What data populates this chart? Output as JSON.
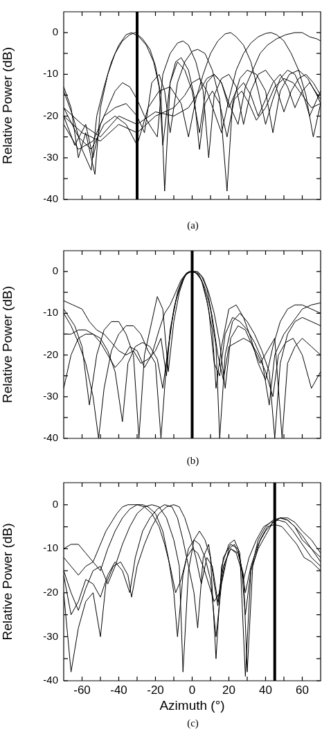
{
  "chart_data": [
    {
      "type": "line",
      "ylabel": "Relative Power (dB)",
      "annotations": [
        "(a)"
      ],
      "xlim": [
        -70,
        70
      ],
      "ylim": [
        -40,
        5
      ],
      "xticks": [
        {
          "value": -60,
          "label": null
        },
        {
          "value": -50,
          "label": null
        },
        {
          "value": -40,
          "label": null
        },
        {
          "value": -30,
          "label": null
        },
        {
          "value": -20,
          "label": null
        },
        {
          "value": -10,
          "label": null
        },
        {
          "value": 0,
          "label": null
        },
        {
          "value": 10,
          "label": null
        },
        {
          "value": 20,
          "label": null
        },
        {
          "value": 30,
          "label": null
        },
        {
          "value": 40,
          "label": null
        },
        {
          "value": 50,
          "label": null
        },
        {
          "value": 60,
          "label": null
        }
      ],
      "yticks": [
        -40,
        {
          "value": -35,
          "label": null
        },
        -30,
        {
          "value": -25,
          "label": null
        },
        -20,
        {
          "value": -15,
          "label": null
        },
        -10,
        {
          "value": -5,
          "label": null
        },
        0
      ],
      "tick_labels": "y",
      "legend": false,
      "marker": "none",
      "grid": false,
      "ref_lines": [
        {
          "axis": "x",
          "value": -30,
          "color": "#000000"
        }
      ],
      "series": [
        {
          "color": "#000000",
          "x": [
            -70,
            -65,
            -60,
            -55,
            -52,
            -48,
            -44,
            -40,
            -36,
            -33,
            -29,
            -25,
            -21,
            -18,
            -16,
            -12,
            -8,
            -4,
            0,
            4,
            8,
            12,
            16,
            20,
            24,
            28,
            32,
            36,
            40,
            44,
            48,
            52,
            56,
            60,
            64,
            70
          ],
          "values": [
            -14,
            -20,
            -28,
            -33,
            -20,
            -13,
            -7,
            -3,
            -0.5,
            0,
            -1,
            -3,
            -7,
            -13,
            -27,
            -12,
            -7,
            -9,
            -14,
            -24,
            -12,
            -10,
            -12,
            -18,
            -14,
            -12,
            -15,
            -20,
            -16,
            -12,
            -10,
            -13,
            -18,
            -14,
            -12,
            -16
          ]
        },
        {
          "color": "#000000",
          "x": [
            -70,
            -66,
            -62,
            -58,
            -53,
            -50,
            -46,
            -42,
            -38,
            -34,
            -31,
            -27,
            -23,
            -20,
            -17,
            -15,
            -12,
            -9,
            -6,
            -2,
            1,
            4,
            7,
            11,
            15,
            19,
            23,
            27,
            31,
            35,
            40,
            45,
            50,
            55,
            60,
            65,
            70
          ],
          "values": [
            -13,
            -18,
            -30,
            -24,
            -34,
            -18,
            -10,
            -5,
            -2,
            -0.5,
            0,
            -1.5,
            -4,
            -8,
            -15,
            -38,
            -12,
            -7,
            -6,
            -9,
            -15,
            -28,
            -17,
            -14,
            -17,
            -25,
            -16,
            -14,
            -17,
            -21,
            -18,
            -13,
            -11,
            -12,
            -15,
            -18,
            -17
          ]
        },
        {
          "color": "#000000",
          "x": [
            -70,
            -64,
            -58,
            -54,
            -50,
            -46,
            -42,
            -38,
            -34,
            -30,
            -26,
            -22,
            -19,
            -16,
            -12,
            -8,
            -5,
            -2,
            2,
            6,
            9,
            12,
            16,
            20,
            24,
            28,
            32,
            36,
            40,
            45,
            50,
            54,
            58,
            62,
            66,
            70
          ],
          "values": [
            -20,
            -27,
            -22,
            -30,
            -22,
            -18,
            -14,
            -12,
            -13,
            -16,
            -20,
            -23,
            -25,
            -10,
            -5,
            -2.5,
            -2,
            -3,
            -7,
            -14,
            -30,
            -15,
            -11,
            -10,
            -13,
            -22,
            -14,
            -10,
            -9,
            -12,
            -19,
            -14,
            -11,
            -10,
            -12,
            -15
          ]
        },
        {
          "color": "#000000",
          "x": [
            -70,
            -62,
            -54,
            -48,
            -42,
            -36,
            -30,
            -26,
            -22,
            -18,
            -15,
            -12,
            -8,
            -4,
            0,
            3,
            7,
            11,
            15,
            19,
            22,
            26,
            30,
            35,
            40,
            44,
            48,
            53,
            58,
            63,
            68,
            70
          ],
          "values": [
            -22,
            -28,
            -26,
            -20,
            -18,
            -17,
            -20,
            -24,
            -12,
            -10,
            -14,
            -24,
            -12,
            -7,
            -4.5,
            -4,
            -5,
            -9,
            -16,
            -38,
            -17,
            -11,
            -9,
            -10,
            -14,
            -24,
            -14,
            -10,
            -9,
            -11,
            -15,
            -17
          ]
        },
        {
          "color": "#000000",
          "x": [
            -70,
            -62,
            -55,
            -48,
            -42,
            -36,
            -30,
            -24,
            -18,
            -12,
            -6,
            -2,
            2,
            6,
            10,
            14,
            18,
            21,
            24,
            28,
            32,
            36,
            40,
            44,
            48,
            52,
            56,
            60,
            64,
            68,
            70
          ],
          "values": [
            -18,
            -25,
            -28,
            -22,
            -20,
            -22,
            -27,
            -18,
            -14,
            -13,
            -17,
            -25,
            -16,
            -10,
            -5,
            -2,
            -0.3,
            0,
            -1,
            -3,
            -7,
            -14,
            -22,
            -16,
            -11,
            -9,
            -10,
            -14,
            -20,
            -16,
            -14
          ]
        },
        {
          "color": "#000000",
          "x": [
            -70,
            -60,
            -50,
            -40,
            -30,
            -20,
            -10,
            -4,
            0,
            4,
            8,
            12,
            16,
            20,
            24,
            28,
            32,
            36,
            40,
            43,
            46,
            50,
            54,
            58,
            62,
            66,
            70
          ],
          "values": [
            -20,
            -24,
            -26,
            -22,
            -24,
            -20,
            -18,
            -15,
            -12,
            -11,
            -14,
            -19,
            -24,
            -16,
            -9,
            -5,
            -2.5,
            -1,
            -0.2,
            0,
            -0.5,
            -2,
            -5,
            -9,
            -15,
            -25,
            -17
          ]
        },
        {
          "color": "#000000",
          "x": [
            -70,
            -60,
            -50,
            -40,
            -30,
            -20,
            -10,
            -2,
            4,
            8,
            12,
            16,
            20,
            25,
            29,
            33,
            37,
            41,
            46,
            51,
            56,
            60,
            64,
            68,
            70
          ],
          "values": [
            -18,
            -22,
            -25,
            -20,
            -22,
            -19,
            -20,
            -18,
            -14,
            -11,
            -10,
            -12,
            -17,
            -22,
            -13,
            -9,
            -5,
            -3,
            -1.5,
            -0.5,
            0,
            0,
            -1,
            -1.5,
            -2
          ]
        }
      ]
    },
    {
      "type": "line",
      "ylabel": "Relative Power (dB)",
      "annotations": [
        "(b)"
      ],
      "xlim": [
        -70,
        70
      ],
      "ylim": [
        -40,
        5
      ],
      "xticks": [
        {
          "value": -60,
          "label": null
        },
        {
          "value": -50,
          "label": null
        },
        {
          "value": -40,
          "label": null
        },
        {
          "value": -30,
          "label": null
        },
        {
          "value": -20,
          "label": null
        },
        {
          "value": -10,
          "label": null
        },
        {
          "value": 0,
          "label": null
        },
        {
          "value": 10,
          "label": null
        },
        {
          "value": 20,
          "label": null
        },
        {
          "value": 30,
          "label": null
        },
        {
          "value": 40,
          "label": null
        },
        {
          "value": 50,
          "label": null
        },
        {
          "value": 60,
          "label": null
        }
      ],
      "yticks": [
        -40,
        {
          "value": -35,
          "label": null
        },
        -30,
        {
          "value": -25,
          "label": null
        },
        -20,
        {
          "value": -15,
          "label": null
        },
        -10,
        {
          "value": -5,
          "label": null
        },
        0
      ],
      "tick_labels": "y",
      "legend": false,
      "marker": "none",
      "grid": false,
      "ref_lines": [
        {
          "axis": "x",
          "value": 0,
          "color": "#000000"
        }
      ],
      "series": [
        {
          "color": "#000000",
          "x": [
            -70,
            -65,
            -60,
            -56,
            -52,
            -48,
            -44,
            -40,
            -36,
            -32,
            -28,
            -24,
            -20,
            -17,
            -14,
            -12,
            -9,
            -6,
            -3,
            0,
            3,
            6,
            9,
            12,
            15,
            18,
            22,
            26,
            30,
            34,
            38,
            42,
            45,
            50,
            55,
            60,
            65,
            70
          ],
          "values": [
            -7,
            -8,
            -9,
            -12,
            -14,
            -15,
            -17,
            -19,
            -20,
            -19,
            -22,
            -21,
            -19,
            -16,
            -25,
            -14,
            -7,
            -3,
            -0.5,
            0,
            -0.5,
            -3,
            -9,
            -22,
            -25,
            -15,
            -11,
            -12,
            -14,
            -17,
            -21,
            -32,
            -20,
            -15,
            -12,
            -9,
            -8,
            -7.5
          ]
        },
        {
          "color": "#000000",
          "x": [
            -70,
            -64,
            -60,
            -56,
            -52,
            -48,
            -44,
            -40,
            -36,
            -32,
            -29,
            -26,
            -22,
            -19,
            -16,
            -13,
            -10,
            -7,
            -4,
            -1,
            2,
            5,
            8,
            11,
            13,
            16,
            20,
            24,
            28,
            32,
            36,
            40,
            44,
            48,
            52,
            56,
            60,
            65,
            70
          ],
          "values": [
            -9,
            -13,
            -18,
            -32,
            -20,
            -14,
            -12,
            -12,
            -15,
            -20,
            -40,
            -20,
            -12,
            -6,
            -9,
            -24,
            -12,
            -5,
            -1,
            0,
            -0.3,
            -2,
            -7,
            -14,
            -28,
            -18,
            -9,
            -8,
            -11,
            -16,
            -22,
            -26,
            -18,
            -12,
            -9,
            -8,
            -8,
            -9,
            -10
          ]
        },
        {
          "color": "#000000",
          "x": [
            -70,
            -66,
            -62,
            -58,
            -54,
            -51,
            -48,
            -44,
            -40,
            -36,
            -32,
            -28,
            -24,
            -20,
            -17,
            -14,
            -11,
            -8,
            -5,
            -2,
            1,
            4,
            7,
            10,
            13,
            15,
            18,
            22,
            26,
            30,
            34,
            38,
            42,
            45,
            48,
            52,
            56,
            60,
            65,
            70
          ],
          "values": [
            -10,
            -13,
            -17,
            -22,
            -30,
            -40,
            -28,
            -19,
            -15,
            -13,
            -13,
            -15,
            -19,
            -22,
            -40,
            -22,
            -12,
            -5,
            -1.5,
            0,
            0,
            -1,
            -4,
            -9,
            -18,
            -40,
            -20,
            -12,
            -10,
            -12,
            -15,
            -19,
            -24,
            -40,
            -22,
            -15,
            -12,
            -11,
            -12,
            -13
          ]
        },
        {
          "color": "#000000",
          "x": [
            -70,
            -66,
            -62,
            -58,
            -54,
            -50,
            -46,
            -42,
            -38,
            -34,
            -30,
            -26,
            -22,
            -18,
            -15,
            -12,
            -9,
            -6,
            -3,
            0,
            3,
            6,
            9,
            12,
            15,
            18,
            21,
            25,
            29,
            33,
            37,
            41,
            45,
            49,
            52,
            56,
            60,
            65,
            70
          ],
          "values": [
            -28,
            -20,
            -16,
            -15,
            -15,
            -17,
            -20,
            -23,
            -21,
            -18,
            -19,
            -23,
            -20,
            -14,
            -10,
            -8,
            -5,
            -2,
            -0.3,
            0,
            0,
            -1.5,
            -5,
            -10,
            -17,
            -28,
            -16,
            -13,
            -14,
            -18,
            -22,
            -19,
            -16,
            -40,
            -22,
            -18,
            -16,
            -18,
            -20
          ]
        },
        {
          "color": "#000000",
          "x": [
            -70,
            -66,
            -62,
            -58,
            -54,
            -50,
            -46,
            -42,
            -38,
            -35,
            -31,
            -27,
            -23,
            -19,
            -16,
            -13,
            -10,
            -7,
            -4,
            -1,
            2,
            5,
            8,
            11,
            14,
            17,
            20,
            24,
            28,
            32,
            36,
            40,
            44,
            47,
            51,
            55,
            60,
            65,
            70
          ],
          "values": [
            -15,
            -15,
            -14,
            -14,
            -15,
            -16,
            -19,
            -24,
            -36,
            -22,
            -18,
            -17,
            -18,
            -21,
            -28,
            -18,
            -9,
            -4,
            -1,
            0,
            0,
            -1,
            -4,
            -11,
            -20,
            -26,
            -18,
            -17,
            -16,
            -17,
            -20,
            -24,
            -30,
            -20,
            -17,
            -16,
            -20,
            -28,
            -24
          ]
        }
      ]
    },
    {
      "type": "line",
      "xlabel": "Azimuth (°)",
      "ylabel": "Relative Power (dB)",
      "annotations": [
        "(c)"
      ],
      "xlim": [
        -70,
        70
      ],
      "ylim": [
        -40,
        5
      ],
      "xticks": [
        -60,
        {
          "value": -50,
          "label": null
        },
        -40,
        {
          "value": -30,
          "label": null
        },
        -20,
        {
          "value": -10,
          "label": null
        },
        0,
        {
          "value": 10,
          "label": null
        },
        20,
        {
          "value": 30,
          "label": null
        },
        40,
        {
          "value": 50,
          "label": null
        },
        60
      ],
      "yticks": [
        -40,
        {
          "value": -35,
          "label": null
        },
        -30,
        {
          "value": -25,
          "label": null
        },
        -20,
        {
          "value": -15,
          "label": null
        },
        -10,
        {
          "value": -5,
          "label": null
        },
        0
      ],
      "legend": false,
      "marker": "none",
      "grid": false,
      "ref_lines": [
        {
          "axis": "x",
          "value": 45,
          "color": "#000000"
        }
      ],
      "series": [
        {
          "color": "#000000",
          "x": [
            -70,
            -66,
            -62,
            -58,
            -54,
            -50,
            -47,
            -44,
            -41,
            -38,
            -35,
            -30,
            -26,
            -22,
            -18,
            -15,
            -12,
            -9,
            -6,
            -3,
            0,
            3,
            6,
            9,
            12,
            15,
            18,
            21,
            24,
            27,
            29,
            32,
            36,
            40,
            44,
            48,
            52,
            56,
            60,
            65,
            70
          ],
          "values": [
            -10,
            -9,
            -9,
            -11,
            -13,
            -9,
            -6,
            -4,
            -2,
            -0.5,
            0,
            0,
            -0.5,
            -2,
            -5,
            -9,
            -14,
            -20,
            -17,
            -12,
            -10,
            -11,
            -14,
            -18,
            -22,
            -20,
            -13,
            -10,
            -11,
            -15,
            -25,
            -15,
            -10,
            -7,
            -4,
            -3,
            -3,
            -4,
            -6,
            -8,
            -11
          ]
        },
        {
          "color": "#000000",
          "x": [
            -70,
            -66,
            -62,
            -58,
            -54,
            -50,
            -46,
            -42,
            -38,
            -34,
            -30,
            -27,
            -24,
            -20,
            -16,
            -13,
            -10,
            -8,
            -5,
            -2,
            1,
            4,
            7,
            10,
            13,
            16,
            20,
            23,
            26,
            29,
            32,
            36,
            40,
            44,
            48,
            52,
            56,
            60,
            65,
            70
          ],
          "values": [
            -12,
            -14,
            -16,
            -14,
            -13,
            -15,
            -10,
            -6,
            -3,
            -1,
            0,
            0,
            -0.5,
            -2,
            -6,
            -12,
            -20,
            -30,
            -16,
            -10,
            -8,
            -9,
            -12,
            -17,
            -30,
            -18,
            -10,
            -9,
            -12,
            -20,
            -14,
            -9,
            -6,
            -4,
            -3,
            -3.5,
            -5,
            -7,
            -10,
            -13
          ]
        },
        {
          "color": "#000000",
          "x": [
            -70,
            -66,
            -62,
            -58,
            -54,
            -50,
            -46,
            -42,
            -38,
            -34,
            -30,
            -26,
            -22,
            -18,
            -14,
            -10,
            -7,
            -5,
            -2,
            1,
            4,
            7,
            10,
            13,
            16,
            20,
            23,
            26,
            29,
            32,
            36,
            40,
            44,
            48,
            52,
            56,
            60,
            65,
            70
          ],
          "values": [
            -15,
            -20,
            -24,
            -19,
            -15,
            -14,
            -18,
            -14,
            -9,
            -5,
            -2,
            -0.5,
            0,
            -0.5,
            -3,
            -8,
            -14,
            -38,
            -15,
            -8,
            -6,
            -8,
            -12,
            -35,
            -14,
            -9,
            -8,
            -11,
            -39,
            -15,
            -8,
            -5,
            -3.5,
            -3,
            -3.5,
            -5,
            -8,
            -10,
            -12
          ]
        },
        {
          "color": "#000000",
          "x": [
            -70,
            -66,
            -62,
            -58,
            -54,
            -50,
            -46,
            -42,
            -38,
            -34,
            -31,
            -27,
            -23,
            -19,
            -15,
            -11,
            -8,
            -5,
            -2,
            1,
            3,
            6,
            9,
            12,
            14,
            17,
            21,
            25,
            28,
            31,
            35,
            39,
            43,
            47,
            51,
            55,
            60,
            65,
            70
          ],
          "values": [
            -16,
            -25,
            -22,
            -17,
            -18,
            -21,
            -16,
            -13,
            -15,
            -20,
            -12,
            -6,
            -3,
            -1,
            0,
            -0.5,
            -3,
            -8,
            -14,
            -20,
            -28,
            -12,
            -9,
            -18,
            -23,
            -12,
            -9,
            -10,
            -17,
            -12,
            -8,
            -5,
            -4,
            -3.5,
            -4,
            -6,
            -9,
            -12,
            -14
          ]
        },
        {
          "color": "#000000",
          "x": [
            -70,
            -66,
            -62,
            -58,
            -54,
            -50,
            -47,
            -43,
            -39,
            -35,
            -33,
            -30,
            -26,
            -22,
            -18,
            -14,
            -10,
            -7,
            -4,
            -1,
            2,
            5,
            8,
            11,
            14,
            17,
            21,
            25,
            28,
            30,
            33,
            37,
            41,
            45,
            49,
            53,
            57,
            61,
            65,
            70
          ],
          "values": [
            -20,
            -38,
            -28,
            -22,
            -20,
            -30,
            -18,
            -14,
            -13,
            -16,
            -21,
            -14,
            -9,
            -5,
            -2,
            -0.5,
            0,
            -0.5,
            -3,
            -7,
            -12,
            -18,
            -12,
            -14,
            -22,
            -14,
            -10,
            -11,
            -16,
            -38,
            -14,
            -8,
            -5,
            -4.5,
            -5,
            -7,
            -9,
            -12,
            -13,
            -15
          ]
        }
      ]
    }
  ]
}
